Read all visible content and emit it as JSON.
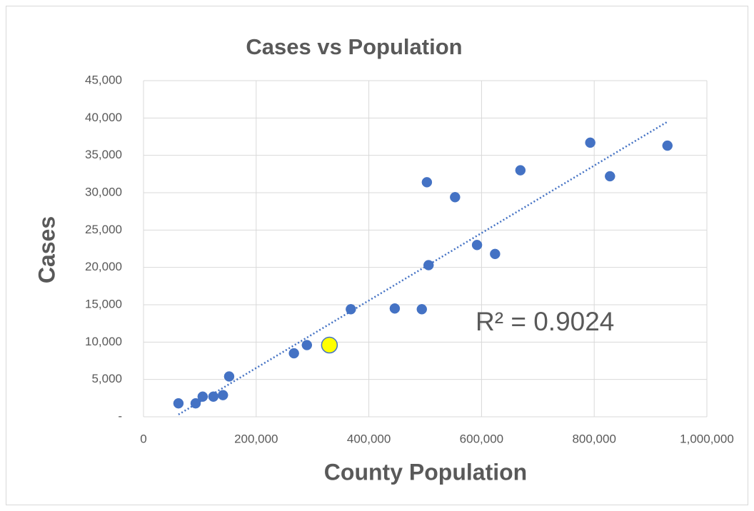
{
  "chart_data": {
    "type": "scatter",
    "title": "Cases vs Population",
    "x_label": "County Population",
    "y_label": "Cases",
    "annotation": "R² = 0.9024",
    "series": [
      {
        "color": "#4472c4",
        "x": [
          62000,
          92500,
          105000,
          124000,
          141000,
          152000,
          267000,
          290000,
          368000,
          446000,
          494000,
          506000,
          503000,
          553000,
          592000,
          624000,
          669000,
          793000,
          828000,
          930000
        ],
        "values": [
          1800,
          1800,
          2700,
          2700,
          2900,
          5400,
          8500,
          9600,
          14400,
          14500,
          14400,
          20300,
          31400,
          29400,
          23000,
          21800,
          33000,
          36700,
          32200,
          36300
        ]
      },
      {
        "color": "#ffff00",
        "edge": "#4472c4",
        "x": [
          330000
        ],
        "values": [
          9600
        ]
      }
    ],
    "trendline": {
      "color": "#4472c4",
      "x": [
        62000,
        930000
      ],
      "values": [
        300,
        39500
      ]
    },
    "xlim": [
      0,
      1000000
    ],
    "xticks": [
      0,
      {
        "value": 200000,
        "label": "200,000"
      },
      {
        "value": 400000,
        "label": "400,000"
      },
      {
        "value": 600000,
        "label": "600,000"
      },
      {
        "value": 800000,
        "label": "800,000"
      },
      {
        "value": 1000000,
        "label": "1,000,000"
      }
    ],
    "ylim": [
      0,
      45000
    ],
    "yticks": [
      {
        "value": 0,
        "label": "-"
      },
      {
        "value": 5000,
        "label": "5,000"
      },
      {
        "value": 10000,
        "label": "10,000"
      },
      {
        "value": 15000,
        "label": "15,000"
      },
      {
        "value": 20000,
        "label": "20,000"
      },
      {
        "value": 25000,
        "label": "25,000"
      },
      {
        "value": 30000,
        "label": "30,000"
      },
      {
        "value": 35000,
        "label": "35,000"
      },
      {
        "value": 40000,
        "label": "40,000"
      },
      {
        "value": 45000,
        "label": "45,000"
      }
    ],
    "grid": true
  }
}
